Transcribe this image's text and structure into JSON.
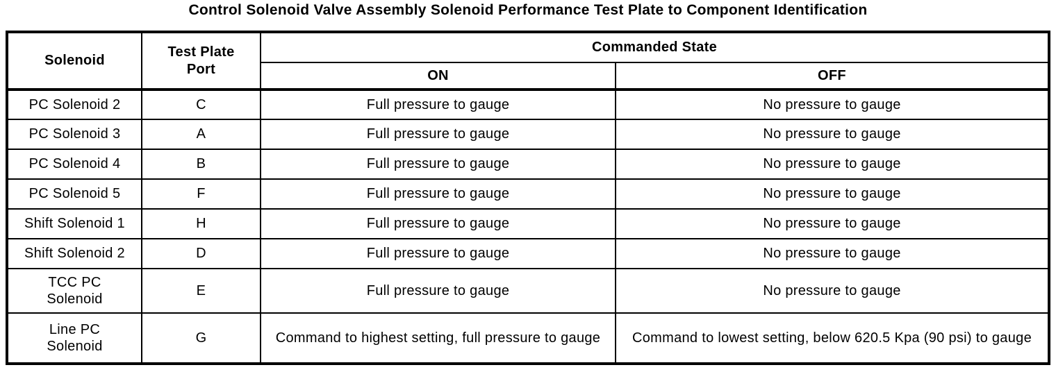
{
  "page": {
    "background_color": "#ffffff",
    "text_color": "#000000",
    "border_color": "#000000"
  },
  "title": "Control Solenoid Valve Assembly Solenoid Performance Test Plate to Component Identification",
  "table": {
    "headers": {
      "solenoid": "Solenoid",
      "test_plate_port": "Test Plate\nPort",
      "commanded_state": "Commanded State",
      "on": "ON",
      "off": "OFF"
    },
    "rows": [
      {
        "solenoid": "PC Solenoid 2",
        "port": "C",
        "on": "Full pressure to gauge",
        "off": "No pressure to gauge"
      },
      {
        "solenoid": "PC Solenoid 3",
        "port": "A",
        "on": "Full pressure to gauge",
        "off": "No pressure to gauge"
      },
      {
        "solenoid": "PC Solenoid 4",
        "port": "B",
        "on": "Full pressure to gauge",
        "off": "No pressure to gauge"
      },
      {
        "solenoid": "PC Solenoid 5",
        "port": "F",
        "on": "Full pressure to gauge",
        "off": "No pressure to gauge"
      },
      {
        "solenoid": "Shift Solenoid 1",
        "port": "H",
        "on": "Full pressure to gauge",
        "off": "No pressure to gauge"
      },
      {
        "solenoid": "Shift Solenoid 2",
        "port": "D",
        "on": "Full pressure to gauge",
        "off": "No pressure to gauge"
      },
      {
        "solenoid": "TCC PC\nSolenoid",
        "port": "E",
        "on": "Full pressure to gauge",
        "off": "No pressure to gauge"
      },
      {
        "solenoid": "Line PC\nSolenoid",
        "port": "G",
        "on": "Command to highest setting, full pressure to gauge",
        "off": "Command to lowest setting, below 620.5 Kpa (90 psi) to gauge"
      }
    ]
  }
}
